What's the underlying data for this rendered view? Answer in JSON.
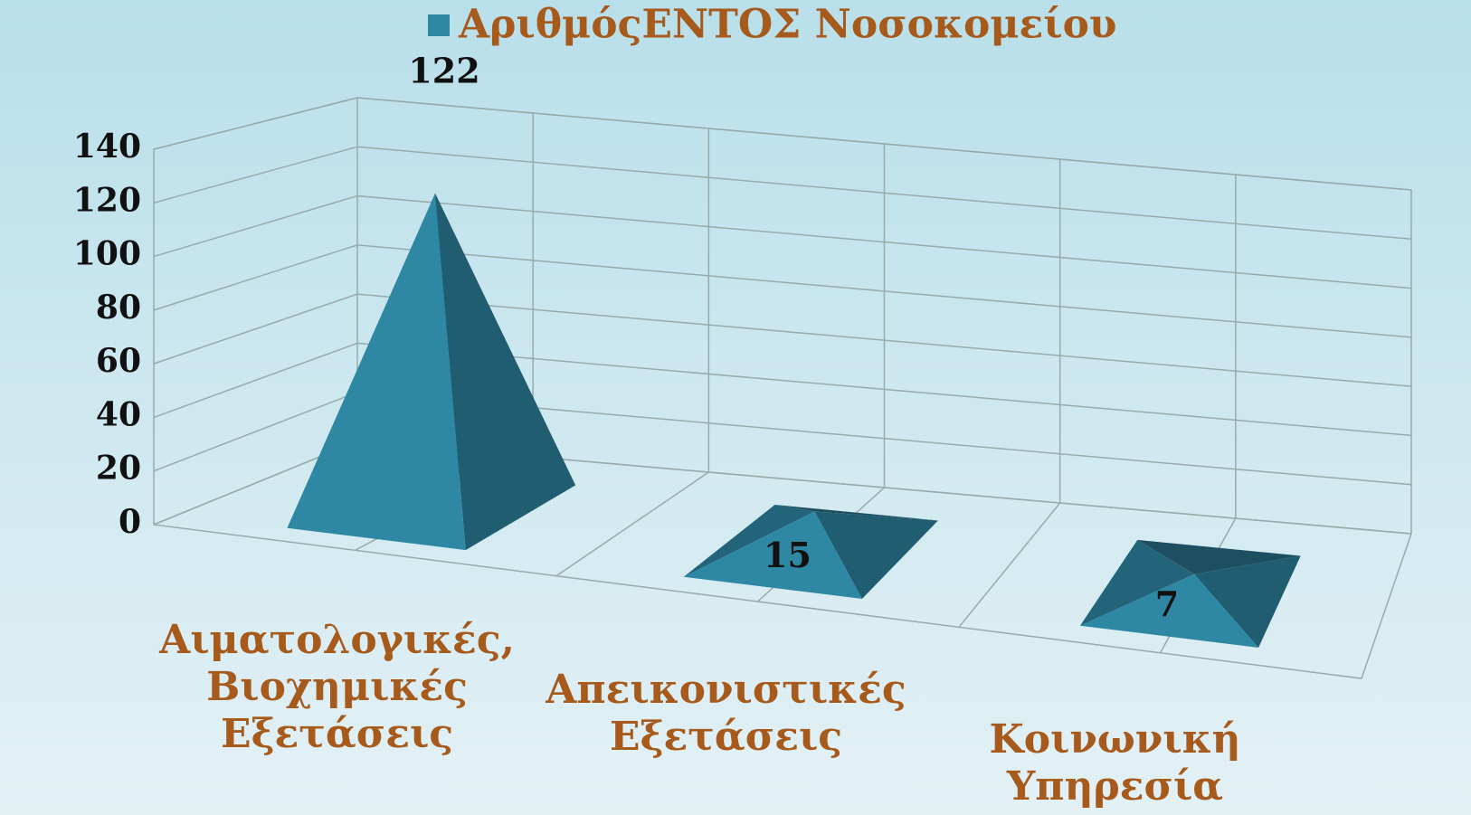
{
  "chart_data": {
    "type": "pyramid3d",
    "categories": [
      "Αιματολογικές, Βιοχημικές Εξετάσεις",
      "Απεικονιστικές Εξετάσεις",
      "Κοινωνική Υπηρεσία"
    ],
    "series": [
      {
        "name": "ΑριθμόςΕΝΤΟΣ Νοσοκομείου",
        "color": "#2e88a3",
        "values": [
          122,
          15,
          7
        ]
      }
    ],
    "ylim": [
      0,
      140
    ],
    "yticks": [
      0,
      20,
      40,
      60,
      80,
      100,
      120,
      140
    ],
    "grid": true,
    "legend": "top"
  }
}
